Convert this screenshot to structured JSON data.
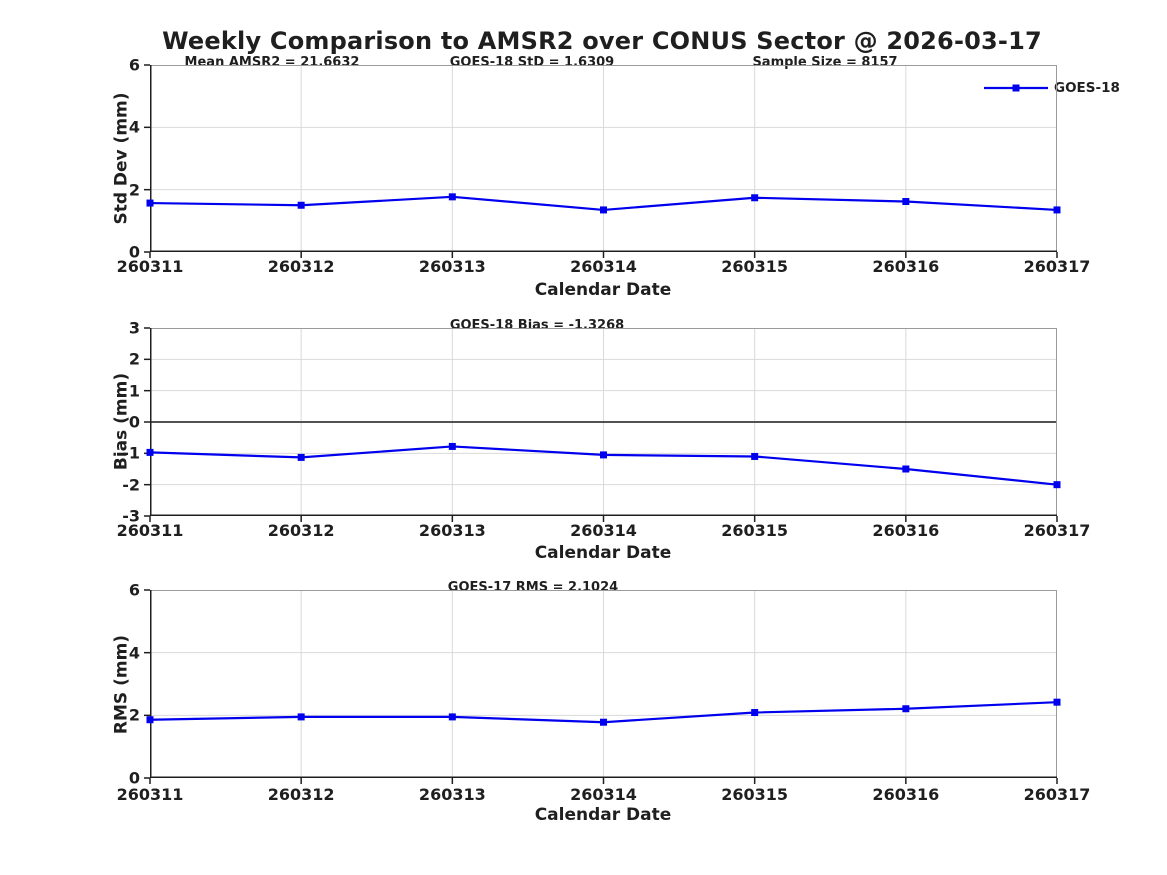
{
  "title": "Weekly Comparison to AMSR2 over CONUS Sector @ 2026-03-17",
  "legend": {
    "label": "GOES-18",
    "color": "#0000ee",
    "marker": "square"
  },
  "colors": {
    "series_blue": "#0000ee",
    "grid": "#d9d9d9",
    "axis_dark": "#1f1f1f",
    "box_light": "#9b9b9b",
    "zero_line": "#3a3a3a",
    "background": "#ffffff"
  },
  "chart_data": [
    {
      "type": "line",
      "name": "std-dev-panel",
      "annotations": [
        "Mean AMSR2 = 21.6632",
        "GOES-18 StD = 1.6309",
        "Sample Size = 8157"
      ],
      "ylabel": "Std Dev (mm)",
      "xlabel": "Calendar Date",
      "categories": [
        "260311",
        "260312",
        "260313",
        "260314",
        "260315",
        "260316",
        "260317"
      ],
      "series": [
        {
          "name": "GOES-18",
          "color": "#0000ee",
          "values": [
            1.57,
            1.5,
            1.77,
            1.35,
            1.74,
            1.62,
            1.35
          ]
        }
      ],
      "ylim": [
        0,
        6
      ],
      "yticks": [
        0,
        2,
        4,
        6
      ],
      "grid": true,
      "zero_line": false,
      "legend_position": "top-right"
    },
    {
      "type": "line",
      "name": "bias-panel",
      "annotations": [
        "GOES-18 Bias  = -1.3268"
      ],
      "ylabel": "Bias (mm)",
      "xlabel": "Calendar Date",
      "categories": [
        "260311",
        "260312",
        "260313",
        "260314",
        "260315",
        "260316",
        "260317"
      ],
      "series": [
        {
          "name": "GOES-18",
          "color": "#0000ee",
          "values": [
            -0.97,
            -1.13,
            -0.78,
            -1.05,
            -1.1,
            -1.5,
            -2.0
          ]
        }
      ],
      "ylim": [
        -3,
        3
      ],
      "yticks": [
        -3,
        -2,
        -1,
        0,
        1,
        2,
        3
      ],
      "grid": true,
      "zero_line": true
    },
    {
      "type": "line",
      "name": "rms-panel",
      "annotations": [
        "GOES-17 RMS = 2.1024"
      ],
      "ylabel": "RMS (mm)",
      "xlabel": "Calendar Date",
      "categories": [
        "260311",
        "260312",
        "260313",
        "260314",
        "260315",
        "260316",
        "260317"
      ],
      "series": [
        {
          "name": "GOES-18",
          "color": "#0000ee",
          "values": [
            1.86,
            1.95,
            1.95,
            1.78,
            2.09,
            2.21,
            2.42
          ]
        }
      ],
      "ylim": [
        0,
        6
      ],
      "yticks": [
        0,
        2,
        4,
        6
      ],
      "grid": true,
      "zero_line": false
    }
  ]
}
